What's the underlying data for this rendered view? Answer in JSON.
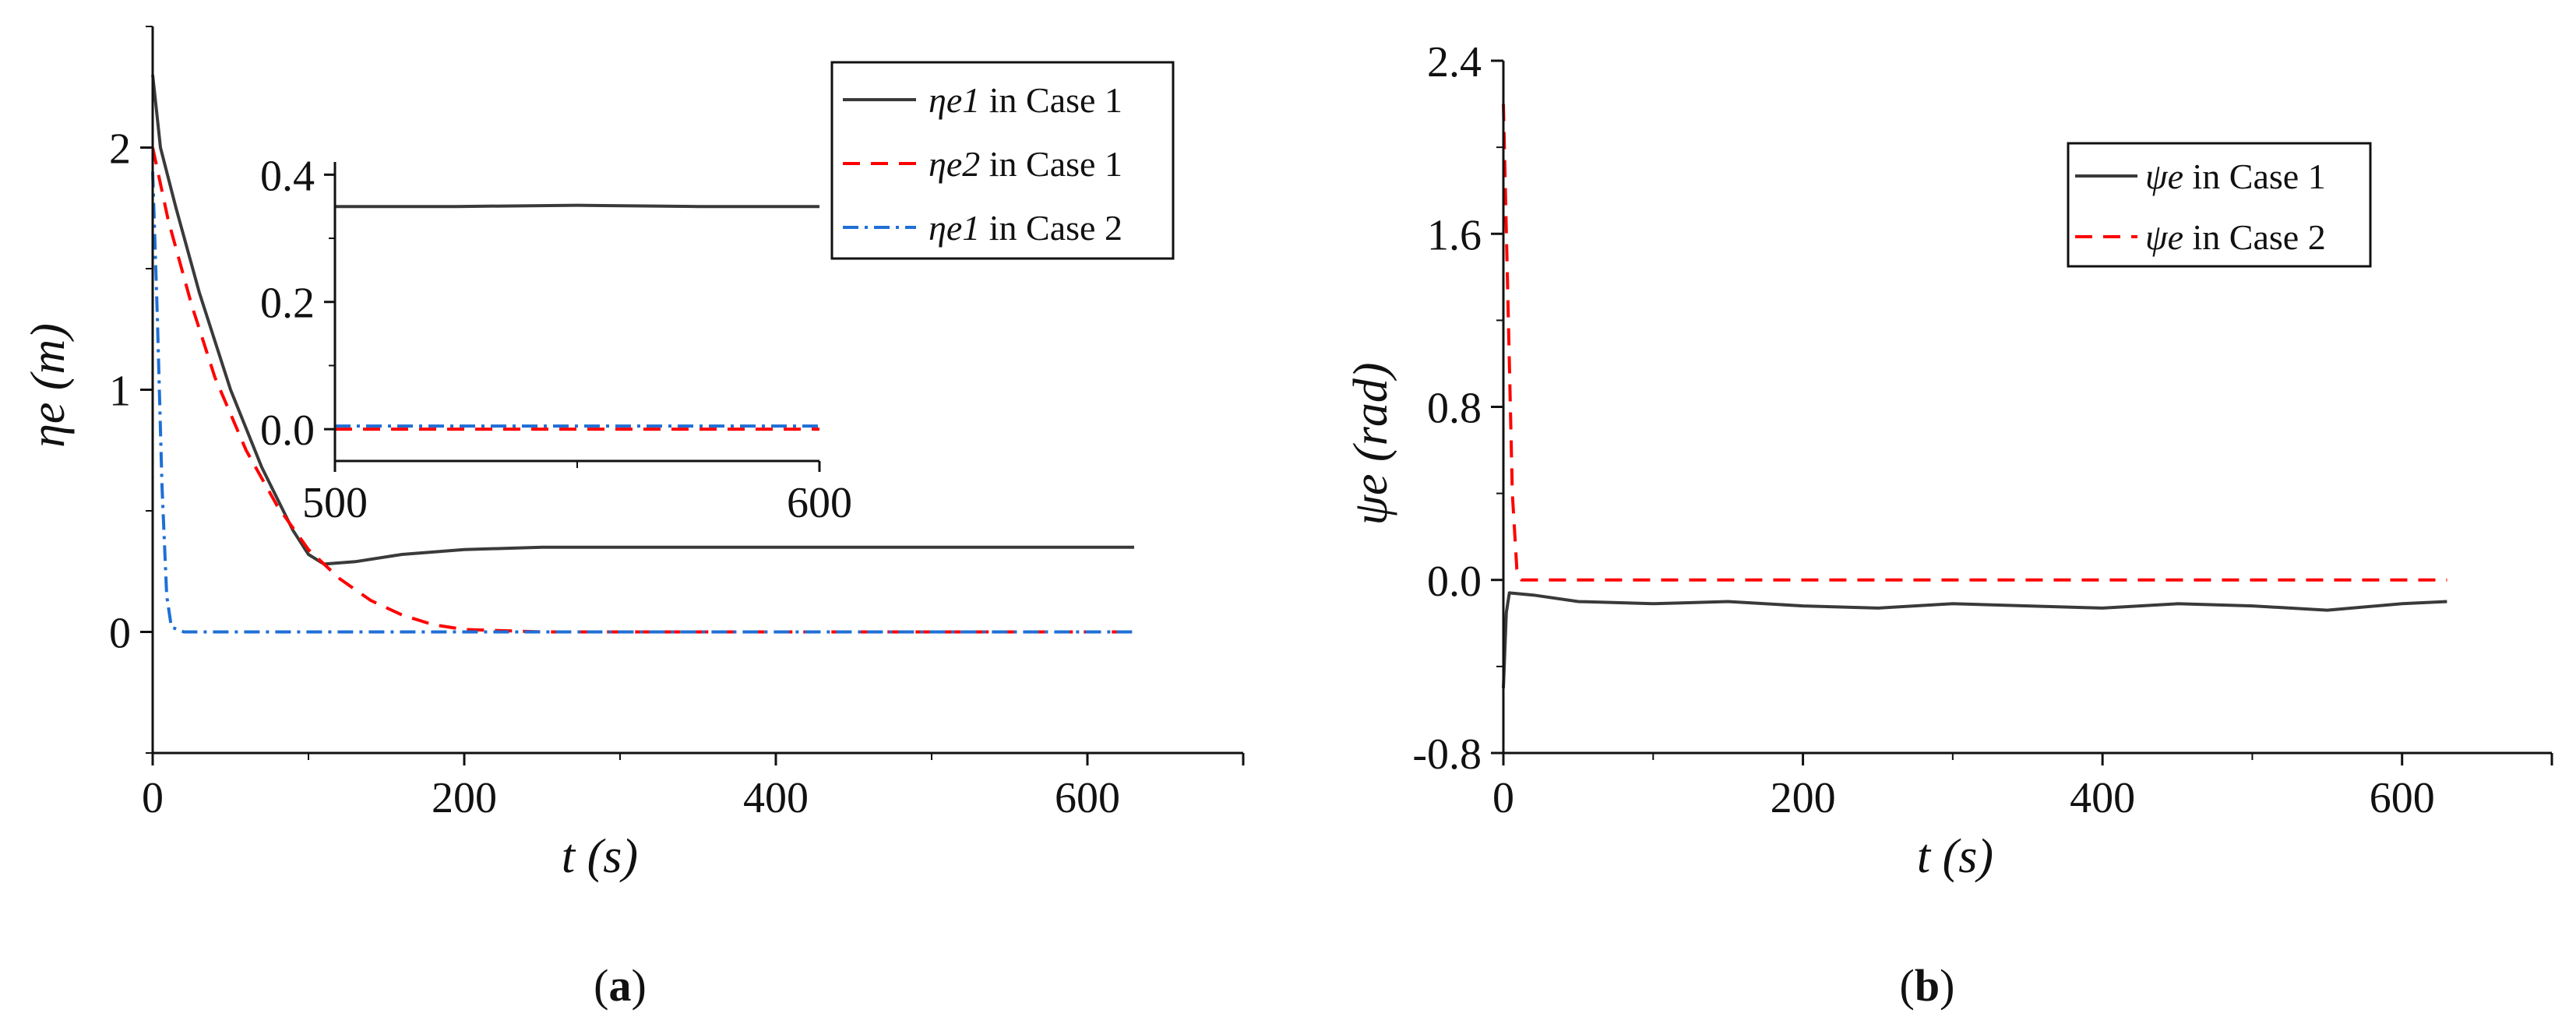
{
  "colors": {
    "case1": "#3a3a3a",
    "case1_dashed": "#ff0000",
    "case2": "#1f6fd6",
    "axis": "#111111",
    "background": "#ffffff"
  },
  "chart_data": [
    {
      "id": "a",
      "type": "line",
      "caption_letter": "a",
      "caption_open": "(",
      "caption_close": ")",
      "title": "",
      "xlabel": "t (s)",
      "ylabel": "ηe (m)",
      "xlim": [
        0,
        700
      ],
      "ylim": [
        -0.5,
        2.5
      ],
      "xticks": [
        0,
        200,
        400,
        600
      ],
      "xtick_labels": [
        "0",
        "200",
        "400",
        "600"
      ],
      "yticks": [
        0,
        1,
        2
      ],
      "ytick_labels": [
        "0",
        "1",
        "2"
      ],
      "legend_position": "top-right",
      "series": [
        {
          "name": "ηe1 in Case 1",
          "legend_symbol": "ηe1",
          "legend_suffix": " in Case 1",
          "style": "solid",
          "color": "#3a3a3a",
          "points": [
            [
              0,
              2.3
            ],
            [
              5,
              2.0
            ],
            [
              15,
              1.75
            ],
            [
              30,
              1.4
            ],
            [
              50,
              1.0
            ],
            [
              70,
              0.68
            ],
            [
              90,
              0.42
            ],
            [
              100,
              0.32
            ],
            [
              110,
              0.28
            ],
            [
              130,
              0.29
            ],
            [
              160,
              0.32
            ],
            [
              200,
              0.34
            ],
            [
              250,
              0.35
            ],
            [
              300,
              0.35
            ],
            [
              400,
              0.35
            ],
            [
              500,
              0.35
            ],
            [
              630,
              0.35
            ]
          ]
        },
        {
          "name": "ηe2 in Case 1",
          "legend_symbol": "ηe2",
          "legend_suffix": " in Case 1",
          "style": "dashed",
          "color": "#ff0000",
          "points": [
            [
              0,
              2.0
            ],
            [
              10,
              1.7
            ],
            [
              25,
              1.35
            ],
            [
              40,
              1.05
            ],
            [
              60,
              0.75
            ],
            [
              80,
              0.52
            ],
            [
              100,
              0.34
            ],
            [
              120,
              0.22
            ],
            [
              140,
              0.13
            ],
            [
              160,
              0.07
            ],
            [
              180,
              0.03
            ],
            [
              200,
              0.01
            ],
            [
              250,
              0.0
            ],
            [
              400,
              0.0
            ],
            [
              630,
              0.0
            ]
          ]
        },
        {
          "name": "ηe1 in Case 2",
          "legend_symbol": "ηe1",
          "legend_suffix": " in Case 2",
          "style": "dashdot",
          "color": "#1f6fd6",
          "points": [
            [
              0,
              1.9
            ],
            [
              3,
              1.3
            ],
            [
              6,
              0.6
            ],
            [
              9,
              0.15
            ],
            [
              12,
              0.02
            ],
            [
              20,
              0.0
            ],
            [
              100,
              0.0
            ],
            [
              630,
              0.0
            ]
          ]
        }
      ],
      "inset": {
        "xlim": [
          500,
          600
        ],
        "ylim": [
          -0.05,
          0.42
        ],
        "xticks": [
          500,
          600
        ],
        "xtick_labels": [
          "500",
          "600"
        ],
        "yticks": [
          0.0,
          0.2,
          0.4
        ],
        "ytick_labels": [
          "0.0",
          "0.2",
          "0.4"
        ],
        "series_values": [
          {
            "points": [
              [
                500,
                0.35
              ],
              [
                525,
                0.35
              ],
              [
                550,
                0.352
              ],
              [
                575,
                0.35
              ],
              [
                600,
                0.35
              ]
            ]
          },
          {
            "points": [
              [
                500,
                0.0
              ],
              [
                600,
                0.0
              ]
            ]
          },
          {
            "points": [
              [
                500,
                0.005
              ],
              [
                600,
                0.005
              ]
            ]
          }
        ]
      }
    },
    {
      "id": "b",
      "type": "line",
      "caption_letter": "b",
      "caption_open": "(",
      "caption_close": ")",
      "title": "",
      "xlabel": "t (s)",
      "ylabel": "ψe (rad)",
      "xlim": [
        0,
        700
      ],
      "ylim": [
        -0.8,
        2.4
      ],
      "xticks": [
        0,
        200,
        400,
        600
      ],
      "xtick_labels": [
        "0",
        "200",
        "400",
        "600"
      ],
      "yticks": [
        -0.8,
        0.0,
        0.8,
        1.6,
        2.4
      ],
      "ytick_labels": [
        "-0.8",
        "0.0",
        "0.8",
        "1.6",
        "2.4"
      ],
      "legend_position": "top-right",
      "series": [
        {
          "name": "ψe in Case 1",
          "legend_symbol": "ψe",
          "legend_suffix": " in Case 1",
          "style": "solid",
          "color": "#3a3a3a",
          "points": [
            [
              0,
              -0.5
            ],
            [
              2,
              -0.15
            ],
            [
              4,
              -0.06
            ],
            [
              20,
              -0.07
            ],
            [
              50,
              -0.1
            ],
            [
              100,
              -0.11
            ],
            [
              150,
              -0.1
            ],
            [
              200,
              -0.12
            ],
            [
              250,
              -0.13
            ],
            [
              300,
              -0.11
            ],
            [
              350,
              -0.12
            ],
            [
              400,
              -0.13
            ],
            [
              450,
              -0.11
            ],
            [
              500,
              -0.12
            ],
            [
              550,
              -0.14
            ],
            [
              600,
              -0.11
            ],
            [
              630,
              -0.1
            ]
          ]
        },
        {
          "name": "ψe in Case 2",
          "legend_symbol": "ψe",
          "legend_suffix": " in Case 2",
          "style": "dashed",
          "color": "#ff0000",
          "points": [
            [
              0,
              2.2
            ],
            [
              3,
              1.3
            ],
            [
              6,
              0.4
            ],
            [
              9,
              0.05
            ],
            [
              12,
              0.0
            ],
            [
              50,
              0.0
            ],
            [
              200,
              0.0
            ],
            [
              400,
              0.0
            ],
            [
              630,
              0.0
            ]
          ]
        }
      ]
    }
  ]
}
